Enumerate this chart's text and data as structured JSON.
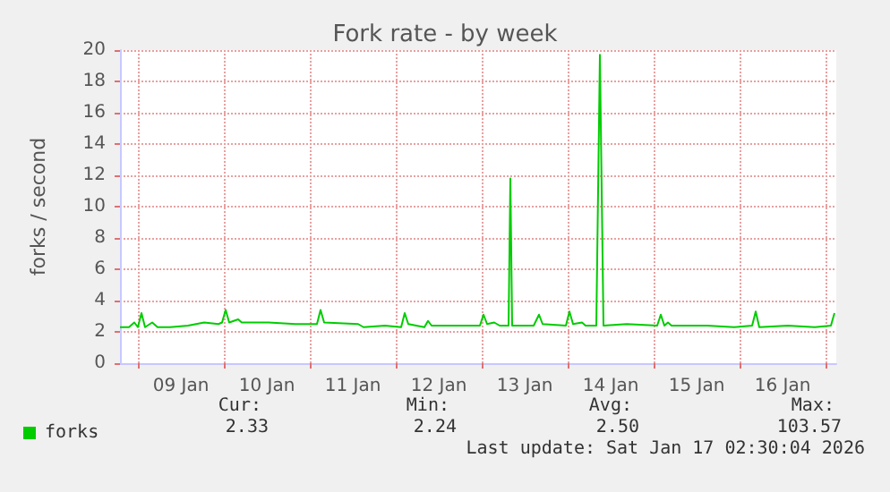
{
  "chart_data": {
    "type": "line",
    "title": "Fork rate - by week",
    "ylabel": "forks / second",
    "x": [
      "2026-01-08T19:00",
      "2026-01-08T21:30",
      "2026-01-08T23:00",
      "2026-01-09T00:00",
      "2026-01-09T01:00",
      "2026-01-09T02:00",
      "2026-01-09T04:00",
      "2026-01-09T05:30",
      "2026-01-09T09:00",
      "2026-01-09T14:00",
      "2026-01-09T18:30",
      "2026-01-09T22:30",
      "2026-01-09T23:30",
      "2026-01-10T00:30",
      "2026-01-10T01:30",
      "2026-01-10T04:00",
      "2026-01-10T05:00",
      "2026-01-10T12:30",
      "2026-01-10T20:00",
      "2026-01-11T02:00",
      "2026-01-11T03:00",
      "2026-01-11T04:00",
      "2026-01-11T13:30",
      "2026-01-11T15:00",
      "2026-01-11T21:00",
      "2026-01-12T01:30",
      "2026-01-12T02:30",
      "2026-01-12T03:30",
      "2026-01-12T08:00",
      "2026-01-12T09:00",
      "2026-01-12T10:00",
      "2026-01-12T17:00",
      "2026-01-12T23:30",
      "2026-01-13T00:30",
      "2026-01-13T01:30",
      "2026-01-13T03:30",
      "2026-01-13T05:00",
      "2026-01-13T07:30",
      "2026-01-13T08:00",
      "2026-01-13T08:30",
      "2026-01-13T14:30",
      "2026-01-13T16:00",
      "2026-01-13T17:00",
      "2026-01-13T23:30",
      "2026-01-14T00:30",
      "2026-01-14T01:30",
      "2026-01-14T04:00",
      "2026-01-14T05:00",
      "2026-01-14T08:00",
      "2026-01-14T09:00",
      "2026-01-14T10:00",
      "2026-01-14T16:30",
      "2026-01-15T01:00",
      "2026-01-15T02:00",
      "2026-01-15T03:00",
      "2026-01-15T04:00",
      "2026-01-15T05:00",
      "2026-01-15T15:00",
      "2026-01-15T22:30",
      "2026-01-16T03:30",
      "2026-01-16T04:30",
      "2026-01-16T05:30",
      "2026-01-16T13:30",
      "2026-01-16T21:00",
      "2026-01-17T01:30",
      "2026-01-17T02:30"
    ],
    "series": [
      {
        "name": "forks",
        "color": "#00cc00",
        "values": [
          2.3,
          2.3,
          2.6,
          2.3,
          3.2,
          2.3,
          2.6,
          2.3,
          2.3,
          2.4,
          2.6,
          2.5,
          2.6,
          3.4,
          2.6,
          2.8,
          2.6,
          2.6,
          2.5,
          2.5,
          3.4,
          2.6,
          2.5,
          2.3,
          2.4,
          2.3,
          3.2,
          2.5,
          2.3,
          2.7,
          2.4,
          2.4,
          2.4,
          3.1,
          2.5,
          2.6,
          2.4,
          2.4,
          11.8,
          2.4,
          2.4,
          3.1,
          2.5,
          2.4,
          3.3,
          2.5,
          2.6,
          2.4,
          2.4,
          19.7,
          2.4,
          2.5,
          2.4,
          3.1,
          2.4,
          2.6,
          2.4,
          2.4,
          2.3,
          2.4,
          3.3,
          2.3,
          2.4,
          2.3,
          2.4,
          3.2
        ]
      }
    ],
    "xlim": [
      "2026-01-08T19:00",
      "2026-01-17T03:00"
    ],
    "xticks": [
      {
        "value": "2026-01-09T00:00",
        "label": null
      },
      {
        "value": "2026-01-09T12:00",
        "label": "09 Jan"
      },
      {
        "value": "2026-01-10T00:00",
        "label": null
      },
      {
        "value": "2026-01-10T12:00",
        "label": "10 Jan"
      },
      {
        "value": "2026-01-11T00:00",
        "label": null
      },
      {
        "value": "2026-01-11T12:00",
        "label": "11 Jan"
      },
      {
        "value": "2026-01-12T00:00",
        "label": null
      },
      {
        "value": "2026-01-12T12:00",
        "label": "12 Jan"
      },
      {
        "value": "2026-01-13T00:00",
        "label": null
      },
      {
        "value": "2026-01-13T12:00",
        "label": "13 Jan"
      },
      {
        "value": "2026-01-14T00:00",
        "label": null
      },
      {
        "value": "2026-01-14T12:00",
        "label": "14 Jan"
      },
      {
        "value": "2026-01-15T00:00",
        "label": null
      },
      {
        "value": "2026-01-15T12:00",
        "label": "15 Jan"
      },
      {
        "value": "2026-01-16T00:00",
        "label": null
      },
      {
        "value": "2026-01-16T12:00",
        "label": "16 Jan"
      },
      {
        "value": "2026-01-17T00:00",
        "label": null
      }
    ],
    "ylim": [
      0,
      20
    ],
    "yticks": [
      0,
      2,
      4,
      6,
      8,
      10,
      12,
      14,
      16,
      18,
      20
    ],
    "grid": true,
    "legend": "bottom left",
    "marker": "none",
    "line_style": "solid",
    "annotations": [
      "Cur:",
      "Min:",
      "Avg:",
      "Max:",
      "2.33",
      "2.24",
      "2.50",
      "103.57",
      "Last update: Sat Jan 17 02:30:04 2026"
    ]
  }
}
